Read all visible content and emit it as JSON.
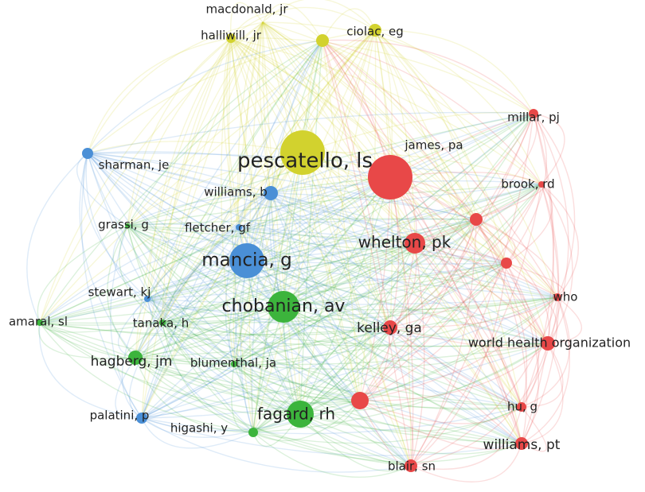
{
  "nodes": [
    {
      "label": "pescatello, ls",
      "color": "#d2d22e"
    },
    {
      "label": "macdonald, jr",
      "color": "#d2d22e"
    },
    {
      "label": "halliwill, jr",
      "color": "#d2d22e"
    },
    {
      "label": "ciolac, eg",
      "color": "#d2d22e"
    },
    {
      "label": "mancia, g",
      "color": "#4a8fd6"
    },
    {
      "label": "sharman, je",
      "color": "#4a8fd6"
    },
    {
      "label": "williams, b",
      "color": "#4a8fd6"
    },
    {
      "label": "fletcher, gf",
      "color": "#4a8fd6"
    },
    {
      "label": "stewart, kj",
      "color": "#4a8fd6"
    },
    {
      "label": "palatini, p",
      "color": "#4a8fd6"
    },
    {
      "label": "chobanian, av",
      "color": "#3cb43c"
    },
    {
      "label": "grassi, g",
      "color": "#3cb43c"
    },
    {
      "label": "amaral, sl",
      "color": "#3cb43c"
    },
    {
      "label": "tanaka, h",
      "color": "#3cb43c"
    },
    {
      "label": "hagberg, jm",
      "color": "#3cb43c"
    },
    {
      "label": "blumenthal, ja",
      "color": "#3cb43c"
    },
    {
      "label": "higashi, y",
      "color": "#3cb43c"
    },
    {
      "label": "fagard, rh",
      "color": "#3cb43c"
    },
    {
      "label": "james, pa",
      "color": "#e84848"
    },
    {
      "label": "millar, pj",
      "color": "#e84848"
    },
    {
      "label": "brook, rd",
      "color": "#e84848"
    },
    {
      "label": "whelton, pk",
      "color": "#e84848"
    },
    {
      "label": "who",
      "color": "#e84848"
    },
    {
      "label": "kelley, ga",
      "color": "#e84848"
    },
    {
      "label": "world health organization",
      "color": "#e84848"
    },
    {
      "label": "hu, g",
      "color": "#e84848"
    },
    {
      "label": "williams, pt",
      "color": "#e84848"
    },
    {
      "label": "blair, sn",
      "color": "#e84848"
    }
  ]
}
